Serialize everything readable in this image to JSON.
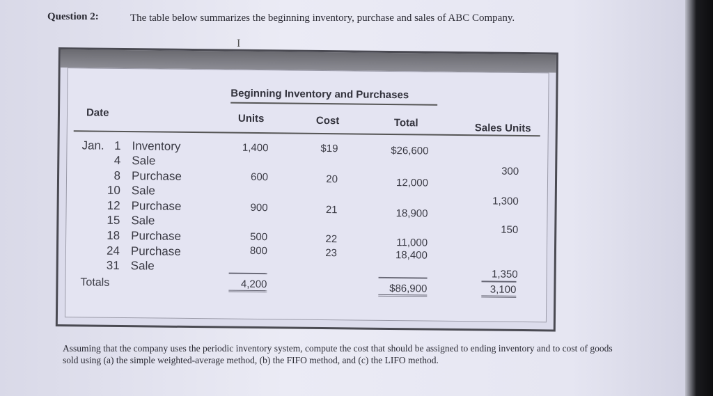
{
  "question": {
    "label": "Question 2:",
    "text": "The table below summarizes the beginning inventory, purchase and sales of ABC Company."
  },
  "table": {
    "group_header": "Beginning Inventory and Purchases",
    "headers": {
      "date": "Date",
      "units": "Units",
      "cost": "Cost",
      "total": "Total",
      "sales_units": "Sales Units"
    },
    "rows": [
      {
        "month": "Jan.",
        "day": "1",
        "desc": "Inventory",
        "units": "1,400",
        "cost": "$19",
        "total": "$26,600",
        "sales": ""
      },
      {
        "day": "4",
        "desc": "Sale",
        "sales": "300"
      },
      {
        "day": "8",
        "desc": "Purchase",
        "units": "600",
        "cost": "20",
        "total": "12,000"
      },
      {
        "day": "10",
        "desc": "Sale",
        "sales": "1,300"
      },
      {
        "day": "12",
        "desc": "Purchase",
        "units": "900",
        "cost": "21",
        "total": "18,900"
      },
      {
        "day": "15",
        "desc": "Sale",
        "sales": "150"
      },
      {
        "day": "18",
        "desc": "Purchase",
        "units": "500",
        "cost": "22",
        "total": "11,000"
      },
      {
        "day": "24",
        "desc": "Purchase",
        "units": "800",
        "cost": "23",
        "total": "18,400"
      },
      {
        "day": "31",
        "desc": "Sale",
        "sales": "1,350"
      }
    ],
    "totals": {
      "label": "Totals",
      "units": "4,200",
      "total": "$86,900",
      "sales": "3,100"
    }
  },
  "footer_text": "Assuming that the company uses the periodic inventory system, compute the cost that should be assigned to ending inventory and to cost of goods sold using (a) the simple weighted-average method, (b) the FIFO method, and (c) the LIFO method."
}
